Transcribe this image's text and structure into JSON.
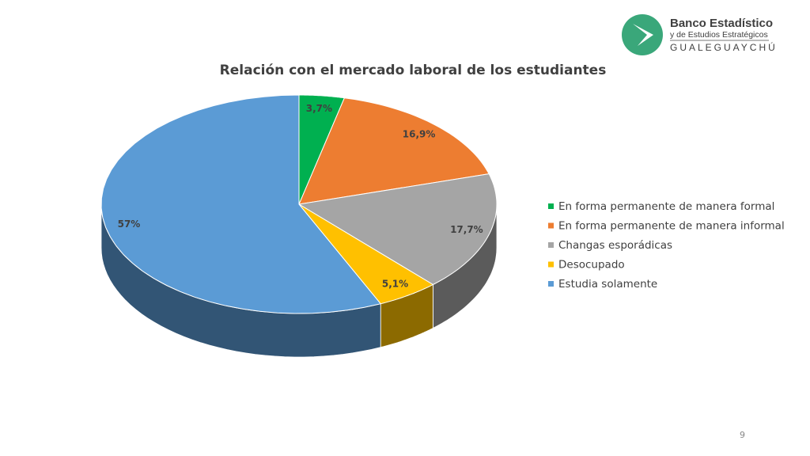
{
  "chart_data": {
    "type": "pie3d",
    "title": "Relación con el mercado laboral de los estudiantes",
    "categories": [
      "En forma permanente de manera formal",
      "En forma permanente de manera informal",
      "Changas esporádicas",
      "Desocupado",
      "Estudia solamente"
    ],
    "values": [
      3.7,
      16.9,
      17.7,
      5.1,
      57
    ],
    "value_labels": [
      "3,7%",
      "16,9%",
      "17,7%",
      "5,1%",
      "57%"
    ],
    "colors": [
      "#00b050",
      "#ed7d31",
      "#a5a5a5",
      "#ffc000",
      "#5b9bd5"
    ],
    "legend": "right"
  },
  "logo": {
    "name": "Banco Estadístico",
    "subtitle": "y de Estudios Estratégicos",
    "city": "GUALEGUAYCHÚ"
  },
  "slide_number": 9
}
